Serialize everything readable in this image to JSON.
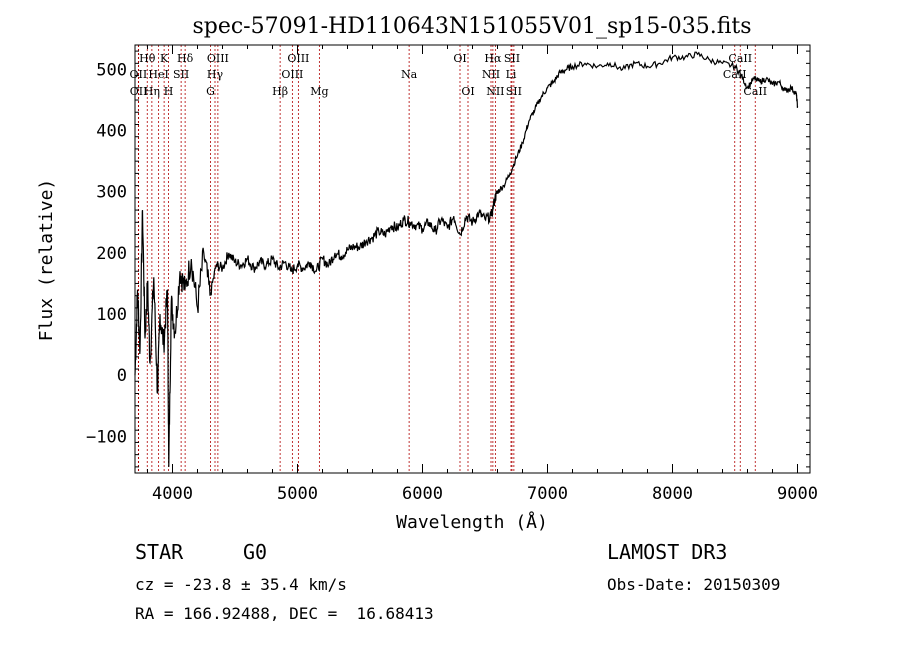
{
  "chart_data": {
    "type": "line",
    "title": "spec-57091-HD110643N151055V01_sp15-035.fits",
    "xlabel": "Wavelength (Å)",
    "ylabel": "Flux (relative)",
    "xlim": [
      3700,
      9100
    ],
    "ylim": [
      -160,
      540
    ],
    "x_ticks": [
      4000,
      5000,
      6000,
      7000,
      8000,
      9000
    ],
    "y_ticks": [
      -100,
      0,
      100,
      200,
      300,
      400,
      500
    ],
    "series": [
      {
        "name": "spectrum",
        "x": [
          3700,
          3720,
          3740,
          3760,
          3780,
          3800,
          3820,
          3850,
          3880,
          3900,
          3930,
          3960,
          3970,
          3990,
          4020,
          4060,
          4100,
          4150,
          4200,
          4250,
          4300,
          4350,
          4400,
          4450,
          4500,
          4550,
          4600,
          4650,
          4700,
          4750,
          4800,
          4850,
          4900,
          4950,
          5000,
          5050,
          5100,
          5150,
          5200,
          5250,
          5300,
          5350,
          5400,
          5450,
          5500,
          5550,
          5600,
          5650,
          5700,
          5750,
          5800,
          5850,
          5900,
          5950,
          6000,
          6050,
          6100,
          6150,
          6200,
          6250,
          6300,
          6350,
          6400,
          6450,
          6500,
          6550,
          6580,
          6600,
          6650,
          6700,
          6750,
          6800,
          6850,
          6900,
          6950,
          7000,
          7050,
          7100,
          7150,
          7200,
          7300,
          7400,
          7500,
          7600,
          7700,
          7800,
          7900,
          8000,
          8100,
          8200,
          8300,
          8400,
          8500,
          8550,
          8600,
          8650,
          8700,
          8750,
          8800,
          8850,
          8900,
          8950,
          8990,
          9000
        ],
        "values": [
          0,
          140,
          40,
          270,
          60,
          150,
          20,
          160,
          -30,
          100,
          50,
          140,
          -150,
          120,
          70,
          170,
          140,
          190,
          110,
          200,
          130,
          180,
          175,
          200,
          185,
          180,
          190,
          175,
          185,
          180,
          190,
          175,
          185,
          170,
          180,
          175,
          185,
          170,
          190,
          180,
          200,
          195,
          205,
          210,
          210,
          220,
          225,
          235,
          230,
          245,
          240,
          255,
          250,
          245,
          240,
          250,
          235,
          255,
          240,
          260,
          230,
          260,
          250,
          265,
          255,
          260,
          290,
          300,
          310,
          330,
          355,
          380,
          415,
          435,
          455,
          470,
          480,
          495,
          500,
          505,
          510,
          505,
          510,
          500,
          510,
          505,
          510,
          520,
          520,
          525,
          515,
          510,
          505,
          490,
          470,
          485,
          480,
          485,
          475,
          480,
          465,
          470,
          460,
          440
        ]
      }
    ],
    "lines": [
      {
        "label": "Hθ",
        "x": 3798,
        "row": 1
      },
      {
        "label": "OII",
        "x": 3727,
        "row": 2
      },
      {
        "label": "OII",
        "x": 3729,
        "row": 3
      },
      {
        "label": "Hη",
        "x": 3835,
        "row": 3
      },
      {
        "label": "K",
        "x": 3933,
        "row": 1
      },
      {
        "label": "HeI",
        "x": 3889,
        "row": 2
      },
      {
        "label": "H",
        "x": 3968,
        "row": 3
      },
      {
        "label": "Hδ",
        "x": 4101,
        "row": 1
      },
      {
        "label": "SII",
        "x": 4069,
        "row": 2
      },
      {
        "label": "OIII",
        "x": 4363,
        "row": 1
      },
      {
        "label": "Hγ",
        "x": 4340,
        "row": 2
      },
      {
        "label": "G",
        "x": 4304,
        "row": 3
      },
      {
        "label": "Hβ",
        "x": 4861,
        "row": 3
      },
      {
        "label": "OIII",
        "x": 5007,
        "row": 1
      },
      {
        "label": "OIII",
        "x": 4959,
        "row": 2
      },
      {
        "label": "Mg",
        "x": 5175,
        "row": 3
      },
      {
        "label": "Na",
        "x": 5893,
        "row": 2
      },
      {
        "label": "OI",
        "x": 6300,
        "row": 1
      },
      {
        "label": "OI",
        "x": 6364,
        "row": 3
      },
      {
        "label": "Hα",
        "x": 6563,
        "row": 1
      },
      {
        "label": "NII",
        "x": 6548,
        "row": 2
      },
      {
        "label": "NII",
        "x": 6583,
        "row": 3
      },
      {
        "label": "SII",
        "x": 6716,
        "row": 1
      },
      {
        "label": "Li",
        "x": 6708,
        "row": 2
      },
      {
        "label": "SII",
        "x": 6731,
        "row": 3
      },
      {
        "label": "CaII",
        "x": 8542,
        "row": 1
      },
      {
        "label": "CaII",
        "x": 8498,
        "row": 2
      },
      {
        "label": "CaII",
        "x": 8662,
        "row": 3
      }
    ]
  },
  "info": {
    "object_class": "STAR",
    "subclass": "G0",
    "survey": "LAMOST DR3",
    "cz": "cz = -23.8 ± 35.4 km/s",
    "obs_date": "Obs-Date: 20150309",
    "coords": "RA = 166.92488, DEC =  16.68413"
  }
}
